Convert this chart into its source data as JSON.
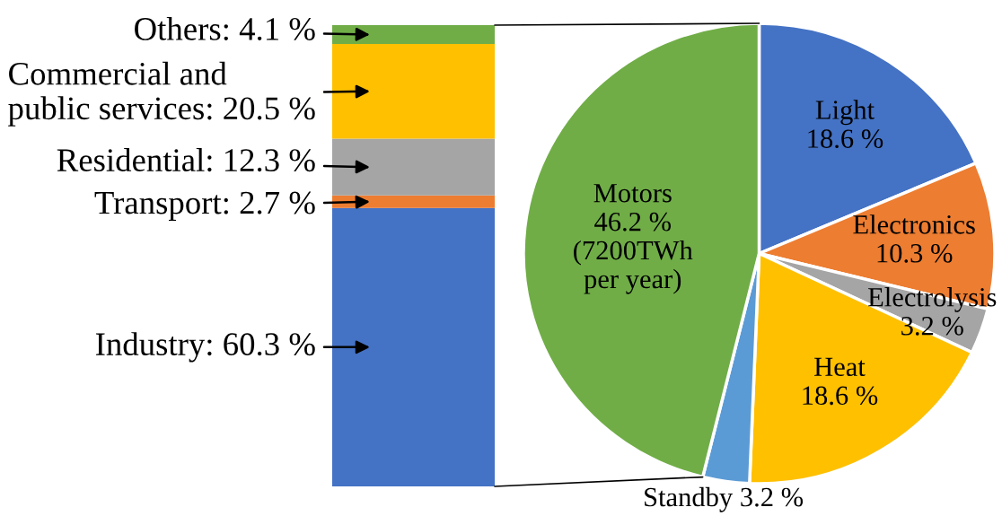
{
  "chart_data": [
    {
      "type": "bar",
      "stacked": true,
      "categories": [
        null
      ],
      "tick_labels": false,
      "series": [
        {
          "color": "#4472c4",
          "values": [
            60.3
          ],
          "value_labels": [
            "Industry: 60.3 %"
          ]
        },
        {
          "color": "#ed7d31",
          "values": [
            2.7
          ],
          "value_labels": [
            "Transport: 2.7 %"
          ]
        },
        {
          "color": "#a5a5a5",
          "values": [
            12.3
          ],
          "value_labels": [
            "Residential: 12.3 %"
          ]
        },
        {
          "color": "#ffc000",
          "values": [
            20.5
          ],
          "value_labels": [
            "Commercial and\npublic services: 20.5 %"
          ]
        },
        {
          "color": "#70ad47",
          "values": [
            4.1
          ],
          "value_labels": [
            "Others: 4.1 %"
          ]
        }
      ]
    },
    {
      "type": "pie",
      "categories": [
        "Light",
        "Electronics",
        "Electrolysis",
        "Heat",
        "Standby",
        "Motors"
      ],
      "values": [
        18.6,
        10.3,
        3.2,
        18.6,
        3.2,
        46.2
      ],
      "colors": [
        "#4472c4",
        "#ed7d31",
        "#a5a5a5",
        "#ffc000",
        "#5b9bd5",
        "#70ad47"
      ],
      "value_labels": [
        "18.6 %",
        "10.3 %",
        "3.2 %",
        "18.6 %",
        "3.2 %",
        "46.2 %\n(7200TWh\nper year)"
      ]
    }
  ]
}
